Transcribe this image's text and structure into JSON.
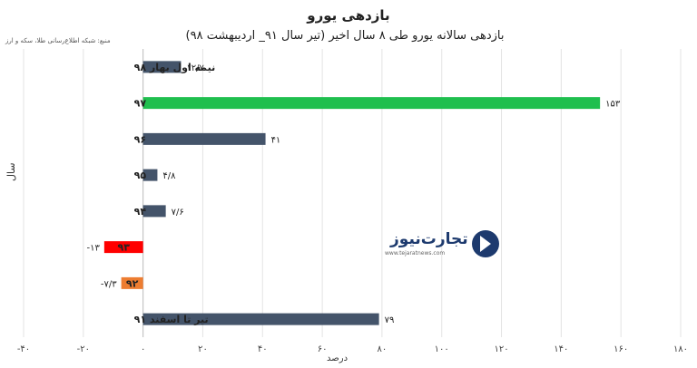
{
  "chart_data": {
    "type": "bar",
    "orientation": "horizontal",
    "title": "بازدهی یورو",
    "subtitle": "بازدهی سالانه یورو طی ۸ سال اخیر (تیر سال ۹۱_ اردیبهشت ۹۸)",
    "source": "منبع: شبکه اطلاع‌رسانی طلا، سکه و ارز",
    "xlabel": "درصد",
    "ylabel": "سال",
    "xlim": [
      -40,
      180
    ],
    "xticks": [
      -40,
      -20,
      0,
      20,
      40,
      60,
      80,
      100,
      120,
      140,
      160,
      180
    ],
    "xtick_labels": [
      "-۴۰",
      "-۲۰",
      "۰",
      "۲۰",
      "۴۰",
      "۶۰",
      "۸۰",
      "۱۰۰",
      "۱۲۰",
      "۱۴۰",
      "۱۶۰",
      "۱۸۰"
    ],
    "grid": true,
    "categories": [
      {
        "label": "نیمه اول بهار ۹۸",
        "value": 12.7,
        "value_label": "۱۲/۷",
        "color": "#44546a",
        "label_inside": false
      },
      {
        "label": "۹۷",
        "value": 153,
        "value_label": "۱۵۳",
        "color": "#1fbf4e",
        "label_inside": false
      },
      {
        "label": "۹۶",
        "value": 41,
        "value_label": "۴۱",
        "color": "#44546a",
        "label_inside": false
      },
      {
        "label": "۹۵",
        "value": 4.8,
        "value_label": "۴/۸",
        "color": "#44546a",
        "label_inside": false
      },
      {
        "label": "۹۴",
        "value": 7.6,
        "value_label": "۷/۶",
        "color": "#44546a",
        "label_inside": false
      },
      {
        "label": "۹۳",
        "value": -13,
        "value_label": "-۱۳",
        "color": "#ff0000",
        "label_inside": true
      },
      {
        "label": "۹۲",
        "value": -7.3,
        "value_label": "-۷/۳",
        "color": "#ed7d31",
        "label_inside": true
      },
      {
        "label": "تیر تا اسفند ۹۱",
        "value": 79,
        "value_label": "۷۹",
        "color": "#44546a",
        "label_inside": false
      }
    ]
  },
  "watermark": {
    "brand": "تجارت‌نیوز",
    "url": "www.tejaratnews.com",
    "color": "#1d3a6e"
  }
}
